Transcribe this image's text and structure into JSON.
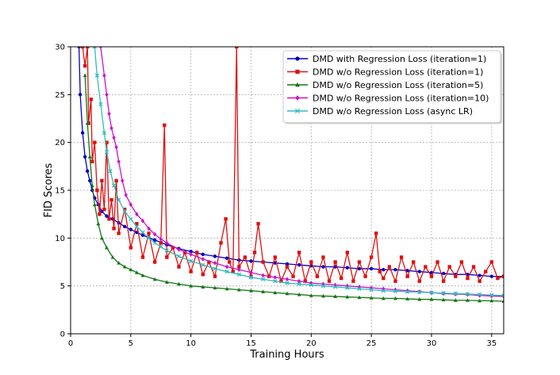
{
  "chart_data": {
    "type": "line",
    "title": "",
    "xlabel": "Training Hours",
    "ylabel": "FID Scores",
    "xlim": [
      0,
      36
    ],
    "ylim": [
      0,
      30
    ],
    "xticks": [
      0,
      5,
      10,
      15,
      20,
      25,
      30,
      35
    ],
    "yticks": [
      0,
      5,
      10,
      15,
      20,
      25,
      30
    ],
    "grid": true,
    "legend_position": "top-right",
    "series": [
      {
        "name": "DMD with Regression Loss (iteration=1)",
        "color": "#0000cc",
        "marker": "circle",
        "x": [
          0.7,
          0.8,
          1.0,
          1.2,
          1.4,
          1.6,
          1.8,
          2.0,
          2.3,
          2.6,
          3.0,
          3.5,
          4.0,
          4.5,
          5.0,
          5.5,
          6.0,
          7.0,
          8.0,
          9.0,
          10.0,
          11.0,
          12.0,
          13.0,
          14.0,
          15.0,
          16.0,
          17.0,
          18.0,
          19.0,
          20.0,
          21.0,
          22.0,
          23.0,
          24.0,
          25.0,
          26.0,
          27.0,
          28.0,
          29.0,
          30.0,
          31.0,
          32.0,
          33.0,
          34.0,
          35.0,
          36.0
        ],
        "values": [
          30.0,
          25.0,
          21.0,
          18.5,
          17.0,
          16.0,
          15.0,
          14.2,
          13.5,
          12.8,
          12.3,
          12.0,
          11.6,
          11.2,
          10.9,
          10.6,
          10.3,
          9.8,
          9.3,
          8.9,
          8.6,
          8.3,
          8.1,
          7.9,
          7.7,
          7.6,
          7.5,
          7.4,
          7.3,
          7.2,
          7.1,
          7.0,
          7.0,
          6.9,
          6.8,
          6.8,
          6.7,
          6.7,
          6.6,
          6.5,
          6.4,
          6.3,
          6.2,
          6.2,
          6.1,
          6.0,
          6.0
        ]
      },
      {
        "name": "DMD w/o Regression Loss (iteration=1)",
        "color": "#dd1111",
        "marker": "square",
        "x": [
          1.0,
          1.2,
          1.4,
          1.5,
          1.7,
          1.8,
          2.0,
          2.2,
          2.4,
          2.6,
          2.8,
          3.0,
          3.2,
          3.4,
          3.6,
          3.8,
          4.0,
          4.5,
          5.0,
          5.5,
          6.0,
          6.5,
          7.0,
          7.5,
          7.8,
          8.0,
          8.5,
          9.0,
          9.5,
          10.0,
          10.5,
          11.0,
          11.5,
          12.0,
          12.5,
          12.9,
          13.2,
          13.5,
          13.8,
          14.0,
          14.5,
          15.0,
          15.3,
          15.6,
          16.0,
          16.5,
          17.0,
          17.5,
          18.0,
          18.5,
          19.0,
          19.5,
          20.0,
          20.5,
          21.0,
          21.5,
          22.0,
          22.5,
          23.0,
          23.5,
          24.0,
          24.5,
          25.0,
          25.4,
          25.7,
          26.0,
          26.5,
          27.0,
          27.5,
          28.0,
          28.5,
          29.0,
          29.5,
          30.0,
          30.5,
          31.0,
          31.5,
          32.0,
          32.5,
          33.0,
          33.5,
          34.0,
          34.5,
          35.0,
          35.5,
          36.0
        ],
        "values": [
          30.0,
          28.0,
          30.0,
          22.0,
          24.5,
          18.0,
          20.0,
          15.0,
          12.5,
          16.0,
          13.0,
          20.0,
          12.0,
          14.0,
          11.0,
          16.0,
          10.5,
          13.0,
          9.0,
          11.5,
          8.0,
          10.5,
          7.5,
          9.5,
          21.8,
          8.0,
          9.0,
          7.0,
          8.5,
          6.5,
          8.5,
          6.2,
          7.5,
          6.0,
          9.5,
          12.0,
          7.5,
          6.5,
          30.0,
          7.0,
          8.0,
          6.0,
          8.5,
          11.5,
          7.5,
          6.0,
          8.0,
          5.5,
          7.0,
          6.0,
          8.5,
          5.5,
          7.5,
          6.0,
          8.0,
          5.5,
          7.5,
          5.8,
          8.5,
          5.5,
          7.5,
          6.0,
          8.0,
          10.5,
          6.5,
          5.8,
          7.0,
          5.5,
          8.0,
          6.0,
          7.5,
          5.5,
          7.0,
          6.0,
          7.5,
          5.5,
          7.0,
          6.0,
          7.5,
          5.8,
          7.0,
          5.5,
          6.5,
          7.5,
          5.8,
          6.0
        ]
      },
      {
        "name": "DMD w/o Regression Loss (iteration=5)",
        "color": "#117711",
        "marker": "triangle",
        "x": [
          1.2,
          1.4,
          1.6,
          1.8,
          2.0,
          2.3,
          2.6,
          3.0,
          3.5,
          4.0,
          4.5,
          5.0,
          5.5,
          6.0,
          7.0,
          8.0,
          9.0,
          10.0,
          11.0,
          12.0,
          13.0,
          14.0,
          15.0,
          16.0,
          17.0,
          18.0,
          19.0,
          20.0,
          21.0,
          22.0,
          23.0,
          24.0,
          25.0,
          26.0,
          27.0,
          28.0,
          29.0,
          30.0,
          31.0,
          32.0,
          33.0,
          34.0,
          35.0,
          36.0
        ],
        "values": [
          27.0,
          22.0,
          18.5,
          15.5,
          13.5,
          11.5,
          10.0,
          9.0,
          8.0,
          7.4,
          7.0,
          6.7,
          6.4,
          6.1,
          5.7,
          5.4,
          5.2,
          5.0,
          4.9,
          4.8,
          4.7,
          4.6,
          4.5,
          4.4,
          4.3,
          4.2,
          4.1,
          4.0,
          3.95,
          3.9,
          3.85,
          3.8,
          3.75,
          3.7,
          3.7,
          3.65,
          3.6,
          3.6,
          3.55,
          3.5,
          3.5,
          3.45,
          3.45,
          3.4
        ]
      },
      {
        "name": "DMD w/o Regression Loss (iteration=10)",
        "color": "#cc11cc",
        "marker": "diamond",
        "x": [
          2.5,
          2.8,
          3.0,
          3.2,
          3.4,
          3.6,
          3.8,
          4.0,
          4.3,
          4.6,
          5.0,
          5.5,
          6.0,
          6.5,
          7.0,
          7.5,
          8.0,
          9.0,
          10.0,
          11.0,
          12.0,
          13.0,
          14.0,
          15.0,
          16.0,
          17.0,
          18.0,
          19.0,
          20.0,
          21.0,
          22.0,
          23.0,
          24.0,
          25.0,
          26.0,
          27.0,
          28.0,
          29.0,
          30.0,
          31.0,
          32.0,
          33.0,
          34.0,
          35.0,
          36.0
        ],
        "values": [
          30.0,
          27.0,
          25.0,
          23.0,
          21.5,
          20.5,
          19.5,
          18.0,
          16.0,
          14.5,
          13.5,
          12.5,
          11.8,
          11.0,
          10.4,
          9.9,
          9.5,
          8.8,
          8.3,
          7.8,
          7.4,
          7.0,
          6.7,
          6.4,
          6.1,
          5.9,
          5.7,
          5.5,
          5.3,
          5.2,
          5.1,
          5.0,
          4.9,
          4.8,
          4.7,
          4.6,
          4.5,
          4.4,
          4.3,
          4.2,
          4.15,
          4.1,
          4.0,
          3.95,
          3.9
        ]
      },
      {
        "name": "DMD w/o Regression Loss (async LR)",
        "color": "#33bbbb",
        "marker": "x",
        "x": [
          2.0,
          2.2,
          2.5,
          2.8,
          3.0,
          3.3,
          3.6,
          4.0,
          4.5,
          5.0,
          5.5,
          6.0,
          6.5,
          7.0,
          7.5,
          8.0,
          9.0,
          10.0,
          11.0,
          12.0,
          13.0,
          14.0,
          15.0,
          16.0,
          17.0,
          18.0,
          19.0,
          20.0,
          21.0,
          22.0,
          23.0,
          24.0,
          25.0,
          26.0,
          27.0,
          28.0,
          29.0,
          30.0,
          31.0,
          32.0,
          33.0,
          34.0,
          35.0,
          36.0
        ],
        "values": [
          30.0,
          27.0,
          24.0,
          21.0,
          19.0,
          17.0,
          15.5,
          14.0,
          12.8,
          12.0,
          11.2,
          10.6,
          10.0,
          9.5,
          9.1,
          8.7,
          8.1,
          7.6,
          7.2,
          6.8,
          6.5,
          6.2,
          5.9,
          5.7,
          5.5,
          5.3,
          5.2,
          5.1,
          5.0,
          4.9,
          4.8,
          4.7,
          4.6,
          4.5,
          4.45,
          4.4,
          4.35,
          4.3,
          4.25,
          4.2,
          4.15,
          4.1,
          4.05,
          4.0
        ]
      }
    ]
  }
}
